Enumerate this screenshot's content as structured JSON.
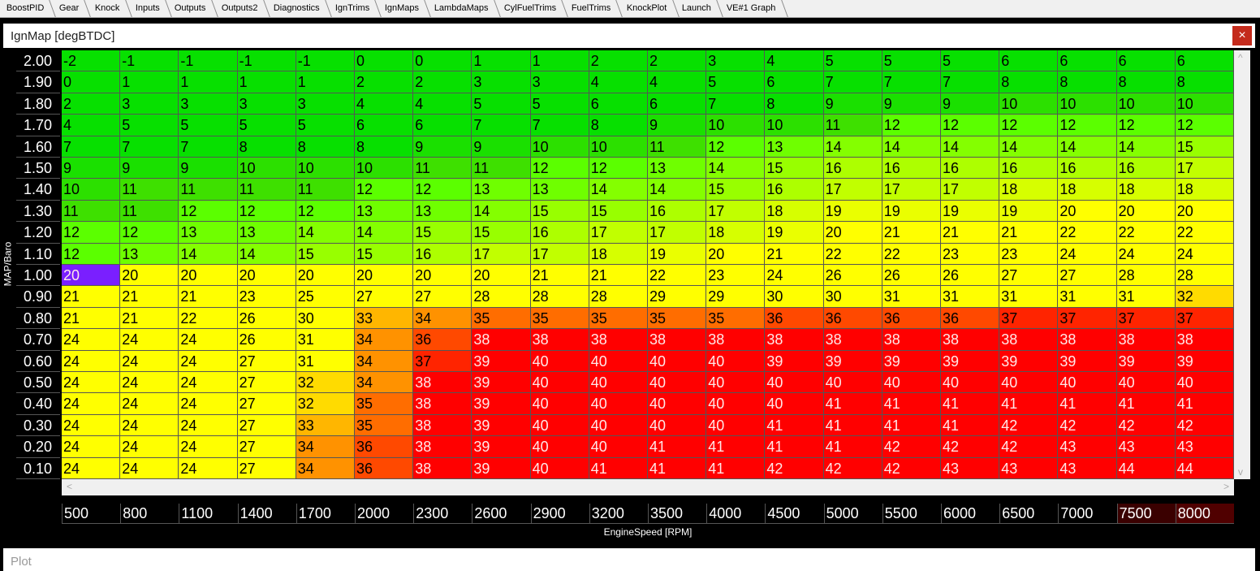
{
  "tabs": [
    "BoostPID",
    "Gear",
    "Knock",
    "Inputs",
    "Outputs",
    "Outputs2",
    "Diagnostics",
    "IgnTrims",
    "IgnMaps",
    "LambdaMaps",
    "CylFuelTrims",
    "FuelTrims",
    "KnockPlot",
    "Launch",
    "VE#1 Graph"
  ],
  "window": {
    "title": "IgnMap [degBTDC]",
    "close": "×"
  },
  "map": {
    "y_axis_label": "MAP/Baro",
    "x_axis_label": "EngineSpeed [RPM]",
    "row_labels": [
      "2.00",
      "1.90",
      "1.80",
      "1.70",
      "1.60",
      "1.50",
      "1.40",
      "1.30",
      "1.20",
      "1.10",
      "1.00",
      "0.90",
      "0.80",
      "0.70",
      "0.60",
      "0.50",
      "0.40",
      "0.30",
      "0.20",
      "0.10"
    ],
    "column_labels": [
      500,
      800,
      1100,
      1400,
      1700,
      2000,
      2300,
      2600,
      2900,
      3200,
      3500,
      4000,
      4500,
      5000,
      5500,
      6000,
      6500,
      7000,
      7500,
      8000
    ],
    "rows": [
      [
        -2,
        -1,
        -1,
        -1,
        -1,
        0,
        0,
        1,
        1,
        2,
        2,
        3,
        4,
        5,
        5,
        5,
        6,
        6,
        6,
        6
      ],
      [
        0,
        1,
        1,
        1,
        1,
        2,
        2,
        3,
        3,
        4,
        4,
        5,
        6,
        7,
        7,
        7,
        8,
        8,
        8,
        8
      ],
      [
        2,
        3,
        3,
        3,
        3,
        4,
        4,
        5,
        5,
        6,
        6,
        7,
        8,
        9,
        9,
        9,
        10,
        10,
        10,
        10
      ],
      [
        4,
        5,
        5,
        5,
        5,
        6,
        6,
        7,
        7,
        8,
        9,
        10,
        10,
        11,
        12,
        12,
        12,
        12,
        12,
        12
      ],
      [
        7,
        7,
        7,
        8,
        8,
        8,
        9,
        9,
        10,
        10,
        11,
        12,
        13,
        14,
        14,
        14,
        14,
        14,
        14,
        15
      ],
      [
        9,
        9,
        9,
        10,
        10,
        10,
        11,
        11,
        12,
        12,
        13,
        14,
        15,
        16,
        16,
        16,
        16,
        16,
        16,
        17
      ],
      [
        10,
        11,
        11,
        11,
        11,
        12,
        12,
        13,
        13,
        14,
        14,
        15,
        16,
        17,
        17,
        17,
        18,
        18,
        18,
        18
      ],
      [
        11,
        11,
        12,
        12,
        12,
        13,
        13,
        14,
        15,
        15,
        16,
        17,
        18,
        19,
        19,
        19,
        19,
        20,
        20,
        20
      ],
      [
        12,
        12,
        13,
        13,
        14,
        14,
        15,
        15,
        16,
        17,
        17,
        18,
        19,
        20,
        21,
        21,
        21,
        22,
        22,
        22
      ],
      [
        12,
        13,
        14,
        14,
        15,
        15,
        16,
        17,
        17,
        18,
        19,
        20,
        21,
        22,
        22,
        23,
        23,
        24,
        24,
        24
      ],
      [
        20,
        20,
        20,
        20,
        20,
        20,
        20,
        20,
        21,
        21,
        22,
        23,
        24,
        26,
        26,
        26,
        27,
        27,
        28,
        28
      ],
      [
        21,
        21,
        21,
        23,
        25,
        27,
        27,
        28,
        28,
        28,
        29,
        29,
        30,
        30,
        31,
        31,
        31,
        31,
        31,
        32
      ],
      [
        21,
        21,
        22,
        26,
        30,
        33,
        34,
        35,
        35,
        35,
        35,
        35,
        36,
        36,
        36,
        36,
        37,
        37,
        37,
        37
      ],
      [
        24,
        24,
        24,
        26,
        31,
        34,
        36,
        38,
        38,
        38,
        38,
        38,
        38,
        38,
        38,
        38,
        38,
        38,
        38,
        38
      ],
      [
        24,
        24,
        24,
        27,
        31,
        34,
        37,
        39,
        40,
        40,
        40,
        40,
        39,
        39,
        39,
        39,
        39,
        39,
        39,
        39
      ],
      [
        24,
        24,
        24,
        27,
        32,
        34,
        38,
        39,
        40,
        40,
        40,
        40,
        40,
        40,
        40,
        40,
        40,
        40,
        40,
        40
      ],
      [
        24,
        24,
        24,
        27,
        32,
        35,
        38,
        39,
        40,
        40,
        40,
        40,
        40,
        41,
        41,
        41,
        41,
        41,
        41,
        41
      ],
      [
        24,
        24,
        24,
        27,
        33,
        35,
        38,
        39,
        40,
        40,
        40,
        40,
        41,
        41,
        41,
        41,
        42,
        42,
        42,
        42
      ],
      [
        24,
        24,
        24,
        27,
        34,
        36,
        38,
        39,
        40,
        40,
        41,
        41,
        41,
        41,
        42,
        42,
        42,
        43,
        43,
        43
      ],
      [
        24,
        24,
        24,
        27,
        34,
        36,
        38,
        39,
        40,
        41,
        41,
        41,
        42,
        42,
        42,
        43,
        43,
        43,
        44,
        44
      ]
    ]
  },
  "plot": {
    "title": "Plot"
  }
}
